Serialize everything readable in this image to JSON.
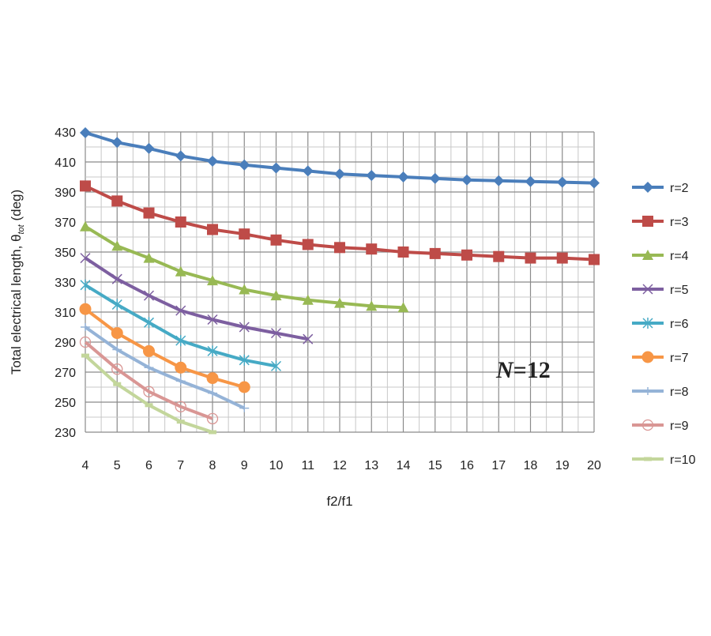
{
  "chart_data": {
    "type": "line",
    "xlabel": "f2/f1",
    "ylabel": "Total electrical length, θ",
    "ylabel_sub": "tot",
    "ylabel_unit": " (deg)",
    "annotation": {
      "italic": "N",
      "rest": "=12"
    },
    "xlim": [
      4,
      20
    ],
    "ylim": [
      230,
      430
    ],
    "x_ticks": [
      4,
      5,
      6,
      7,
      8,
      9,
      10,
      11,
      12,
      13,
      14,
      15,
      16,
      17,
      18,
      19,
      20
    ],
    "y_ticks": [
      230,
      250,
      270,
      290,
      310,
      330,
      350,
      370,
      390,
      410,
      430
    ],
    "grid": true,
    "legend_position": "right",
    "series": [
      {
        "name": "r=2",
        "color": "#4a7ebb",
        "marker": "diamond",
        "x": [
          4,
          5,
          6,
          7,
          8,
          9,
          10,
          11,
          12,
          13,
          14,
          15,
          16,
          17,
          18,
          19,
          20
        ],
        "y": [
          429.5,
          423,
          419,
          414,
          410.5,
          408,
          406,
          404,
          402,
          401,
          400,
          399,
          398,
          397.5,
          397,
          396.5,
          396
        ]
      },
      {
        "name": "r=3",
        "color": "#be4b48",
        "marker": "square",
        "x": [
          4,
          5,
          6,
          7,
          8,
          9,
          10,
          11,
          12,
          13,
          14,
          15,
          16,
          17,
          18,
          19,
          20
        ],
        "y": [
          394,
          384,
          376,
          370,
          365,
          362,
          358,
          355,
          353,
          352,
          350,
          349,
          348,
          347,
          346,
          346,
          345
        ]
      },
      {
        "name": "r=4",
        "color": "#98b954",
        "marker": "triangle",
        "x": [
          4,
          5,
          6,
          7,
          8,
          9,
          10,
          11,
          12,
          13,
          14
        ],
        "y": [
          367,
          354,
          346,
          337,
          331,
          325,
          321,
          318,
          316,
          314,
          313
        ]
      },
      {
        "name": "r=5",
        "color": "#7d5fa0",
        "marker": "x",
        "x": [
          4,
          5,
          6,
          7,
          8,
          9,
          10,
          11
        ],
        "y": [
          346,
          332,
          321,
          311,
          305,
          300,
          296,
          292
        ]
      },
      {
        "name": "r=6",
        "color": "#46aac5",
        "marker": "star",
        "x": [
          4,
          5,
          6,
          7,
          8,
          9,
          10
        ],
        "y": [
          328,
          315,
          303,
          291,
          284,
          278,
          274
        ]
      },
      {
        "name": "r=7",
        "color": "#f79646",
        "marker": "circle",
        "x": [
          4,
          5,
          6,
          7,
          8,
          9
        ],
        "y": [
          312,
          296,
          284,
          273,
          266,
          260
        ]
      },
      {
        "name": "r=8",
        "color": "#95b3d7",
        "marker": "plus",
        "x": [
          4,
          5,
          6,
          7,
          8,
          9
        ],
        "y": [
          300,
          285,
          273,
          264,
          256,
          246
        ]
      },
      {
        "name": "r=9",
        "color": "#d99694",
        "marker": "open-circle",
        "x": [
          4,
          5,
          6,
          7,
          8
        ],
        "y": [
          290,
          272,
          257,
          247,
          239
        ]
      },
      {
        "name": "r=10",
        "color": "#c3d69b",
        "marker": "dash",
        "x": [
          4,
          5,
          6,
          7,
          8
        ],
        "y": [
          281,
          262,
          248,
          237,
          230
        ]
      }
    ]
  }
}
